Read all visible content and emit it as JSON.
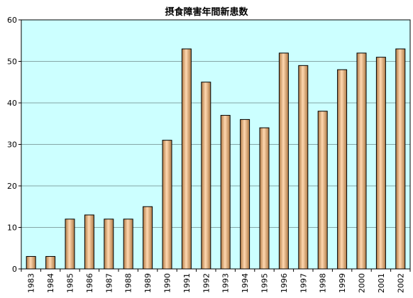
{
  "chart_data": {
    "type": "bar",
    "title": "摂食障害年間新患数",
    "xlabel": "",
    "ylabel": "",
    "ylim": [
      0,
      60
    ],
    "yticks": [
      0,
      10,
      20,
      30,
      40,
      50,
      60
    ],
    "grid": true,
    "legend": "none",
    "categories": [
      "1983",
      "1984",
      "1985",
      "1986",
      "1987",
      "1988",
      "1989",
      "1990",
      "1991",
      "1992",
      "1993",
      "1994",
      "1995",
      "1996",
      "1997",
      "1998",
      "1999",
      "2000",
      "2001",
      "2002"
    ],
    "values": [
      3,
      3,
      12,
      13,
      12,
      12,
      15,
      31,
      53,
      45,
      37,
      36,
      34,
      52,
      49,
      38,
      48,
      52,
      51,
      53
    ]
  },
  "colors": {
    "plot_background": "#ccffff",
    "bar_fill_edge": "#b07a45",
    "bar_fill_center": "#ffd8b0",
    "bar_stroke": "#000000",
    "gridline": "#000000"
  }
}
